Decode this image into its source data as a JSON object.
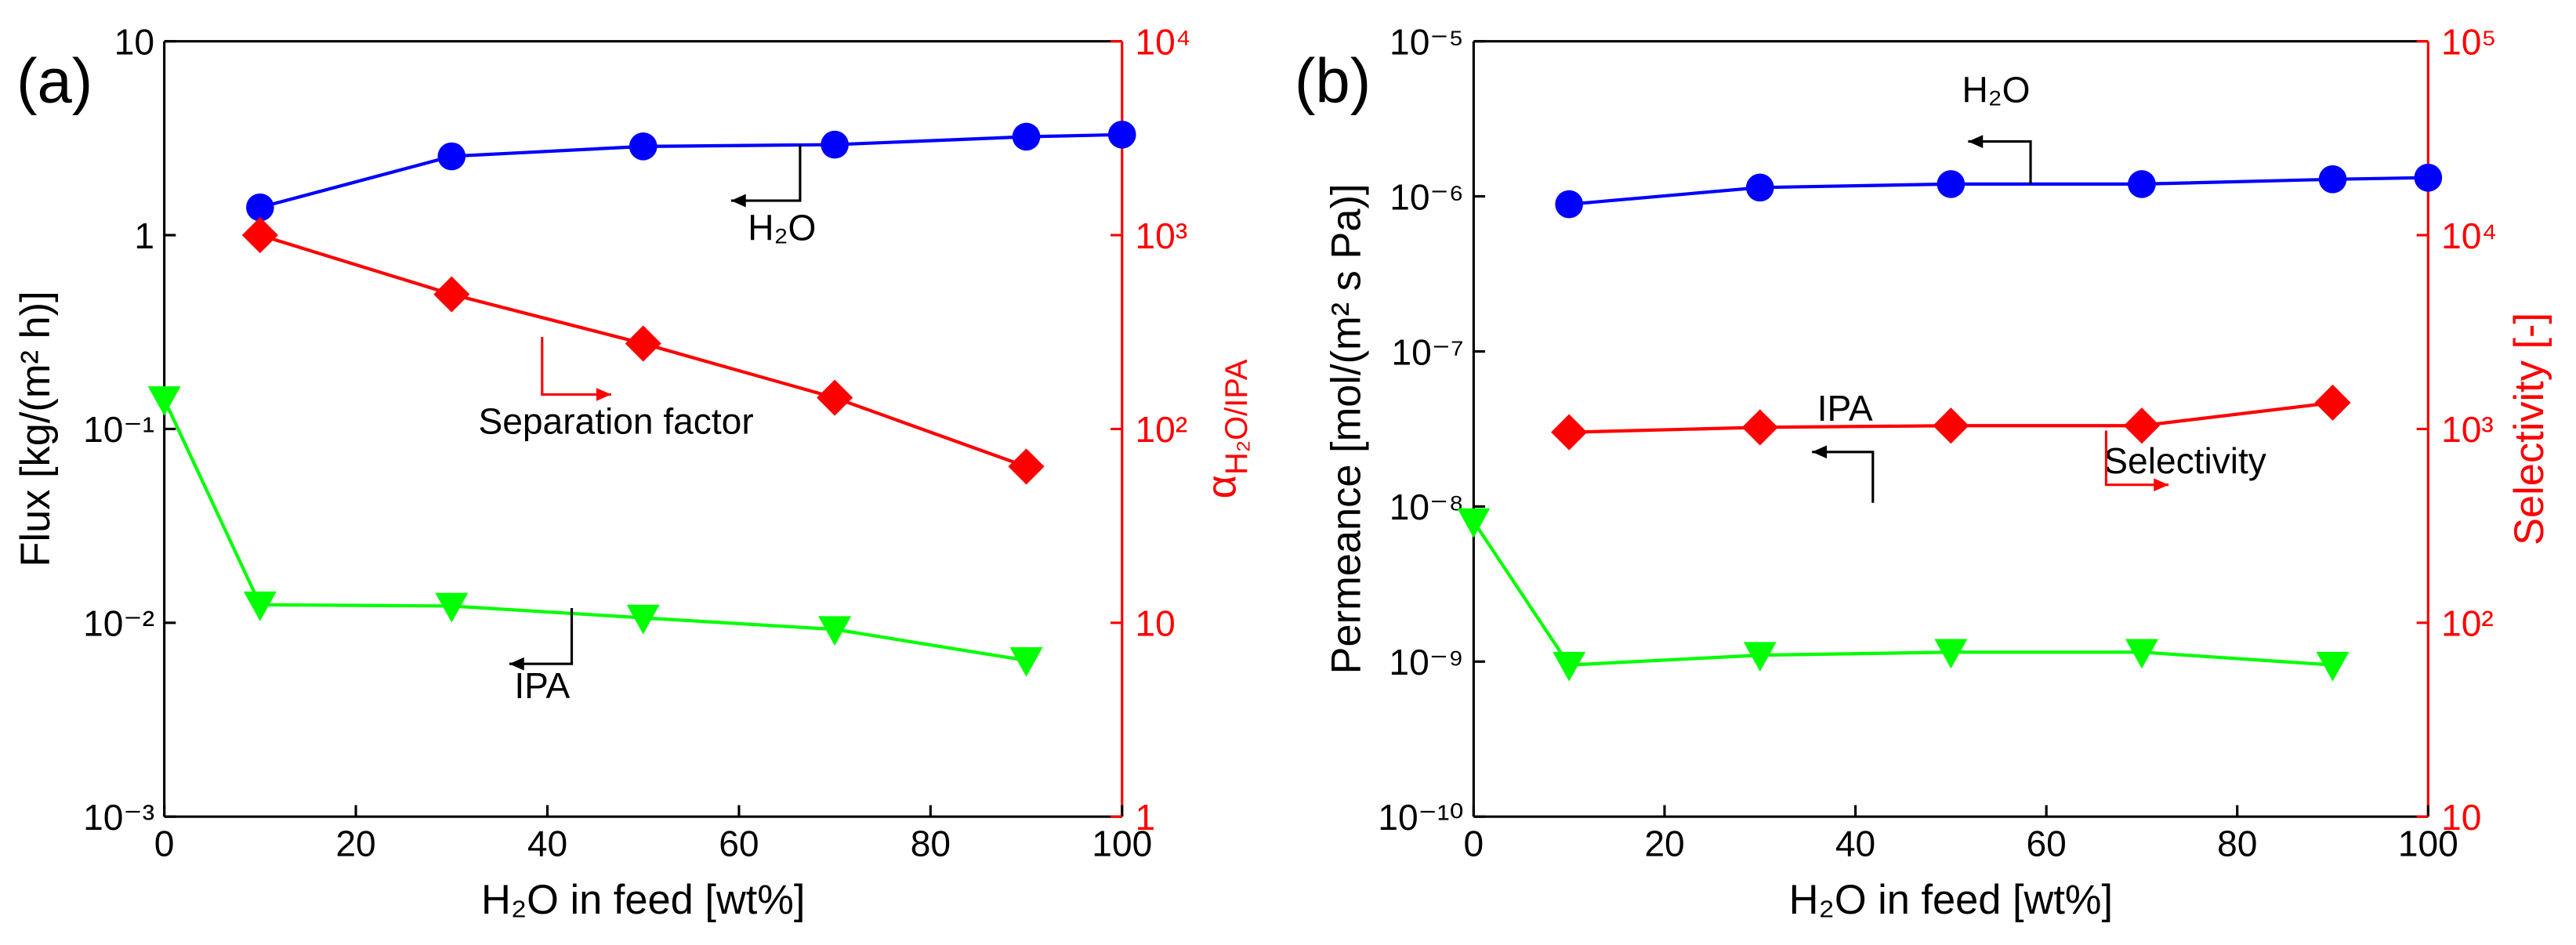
{
  "chart_data": [
    {
      "type": "line",
      "panel_label": "(a)",
      "xlabel": "H₂O in feed [wt%]",
      "ylabel": "Flux [kg/(m² h)]",
      "y2label": {
        "symbol": "α",
        "subscript": "H₂O/IPA"
      },
      "xlim": [
        0,
        100
      ],
      "xticks": [
        0,
        20,
        40,
        60,
        80,
        100
      ],
      "ylim": [
        0.001,
        10
      ],
      "yscale": "log",
      "yticks": [
        {
          "value": 0.001,
          "label": "10⁻³"
        },
        {
          "value": 0.01,
          "label": "10⁻²"
        },
        {
          "value": 0.1,
          "label": "10⁻¹"
        },
        1,
        10
      ],
      "y2lim": [
        1,
        10000
      ],
      "y2scale": "log",
      "y2ticks": [
        1,
        10,
        {
          "value": 100,
          "label": "10²"
        },
        {
          "value": 1000,
          "label": "10³"
        },
        {
          "value": 10000,
          "label": "10⁴"
        }
      ],
      "y2color": "#ff0000",
      "series": [
        {
          "name": "H₂O",
          "color": "#0000ff",
          "marker": "circle",
          "x": [
            10,
            30,
            50,
            70,
            90,
            100
          ],
          "values": [
            1.39,
            2.55,
            2.87,
            2.93,
            3.22,
            3.3
          ]
        },
        {
          "name": "Separation factor",
          "color": "#ff0000",
          "marker": "diamond",
          "axis": "y2",
          "x": [
            10,
            30,
            50,
            70,
            90
          ],
          "values": [
            1000,
            495,
            276,
            145,
            64
          ]
        },
        {
          "name": "IPA",
          "color": "#00ff00",
          "marker": "triangle-down",
          "x": [
            0,
            10,
            30,
            50,
            70,
            90
          ],
          "values": [
            0.142,
            0.0124,
            0.0122,
            0.0106,
            0.00925,
            0.0064
          ]
        }
      ]
    },
    {
      "type": "line",
      "panel_label": "(b)",
      "xlabel": "H₂O in feed [wt%]",
      "ylabel": "Permeance [mol/(m² s Pa)]",
      "y2label": {
        "symbol": "Selectivity [-]"
      },
      "xlim": [
        0,
        100
      ],
      "xticks": [
        0,
        20,
        40,
        60,
        80,
        100
      ],
      "ylim": [
        1e-10,
        1e-05
      ],
      "yscale": "log",
      "yticks": [
        {
          "value": 1e-10,
          "label": "10⁻¹⁰"
        },
        {
          "value": 1e-09,
          "label": "10⁻⁹"
        },
        {
          "value": 1e-08,
          "label": "10⁻⁸"
        },
        {
          "value": 1e-07,
          "label": "10⁻⁷"
        },
        {
          "value": 1e-06,
          "label": "10⁻⁶"
        },
        {
          "value": 1e-05,
          "label": "10⁻⁵"
        }
      ],
      "y2lim": [
        10,
        100000
      ],
      "y2scale": "log",
      "y2ticks": [
        10,
        {
          "value": 100,
          "label": "10²"
        },
        {
          "value": 1000,
          "label": "10³"
        },
        {
          "value": 10000,
          "label": "10⁴"
        },
        {
          "value": 100000,
          "label": "10⁵"
        }
      ],
      "y2color": "#ff0000",
      "series": [
        {
          "name": "H₂O",
          "color": "#0000ff",
          "marker": "circle",
          "x": [
            10,
            30,
            50,
            70,
            90,
            100
          ],
          "values": [
            8.9e-07,
            1.14e-06,
            1.2e-06,
            1.2e-06,
            1.29e-06,
            1.32e-06
          ]
        },
        {
          "name": "Selectivity",
          "color": "#ff0000",
          "marker": "diamond",
          "axis": "y2",
          "x": [
            10,
            30,
            50,
            70,
            90
          ],
          "values": [
            962,
            1019,
            1040,
            1040,
            1367
          ]
        },
        {
          "name": "IPA",
          "color": "#00ff00",
          "marker": "triangle-down",
          "x": [
            0,
            10,
            30,
            50,
            70,
            90
          ],
          "values": [
            8e-09,
            9.5e-10,
            1.1e-09,
            1.15e-09,
            1.15e-09,
            9.5e-10
          ]
        }
      ]
    }
  ]
}
